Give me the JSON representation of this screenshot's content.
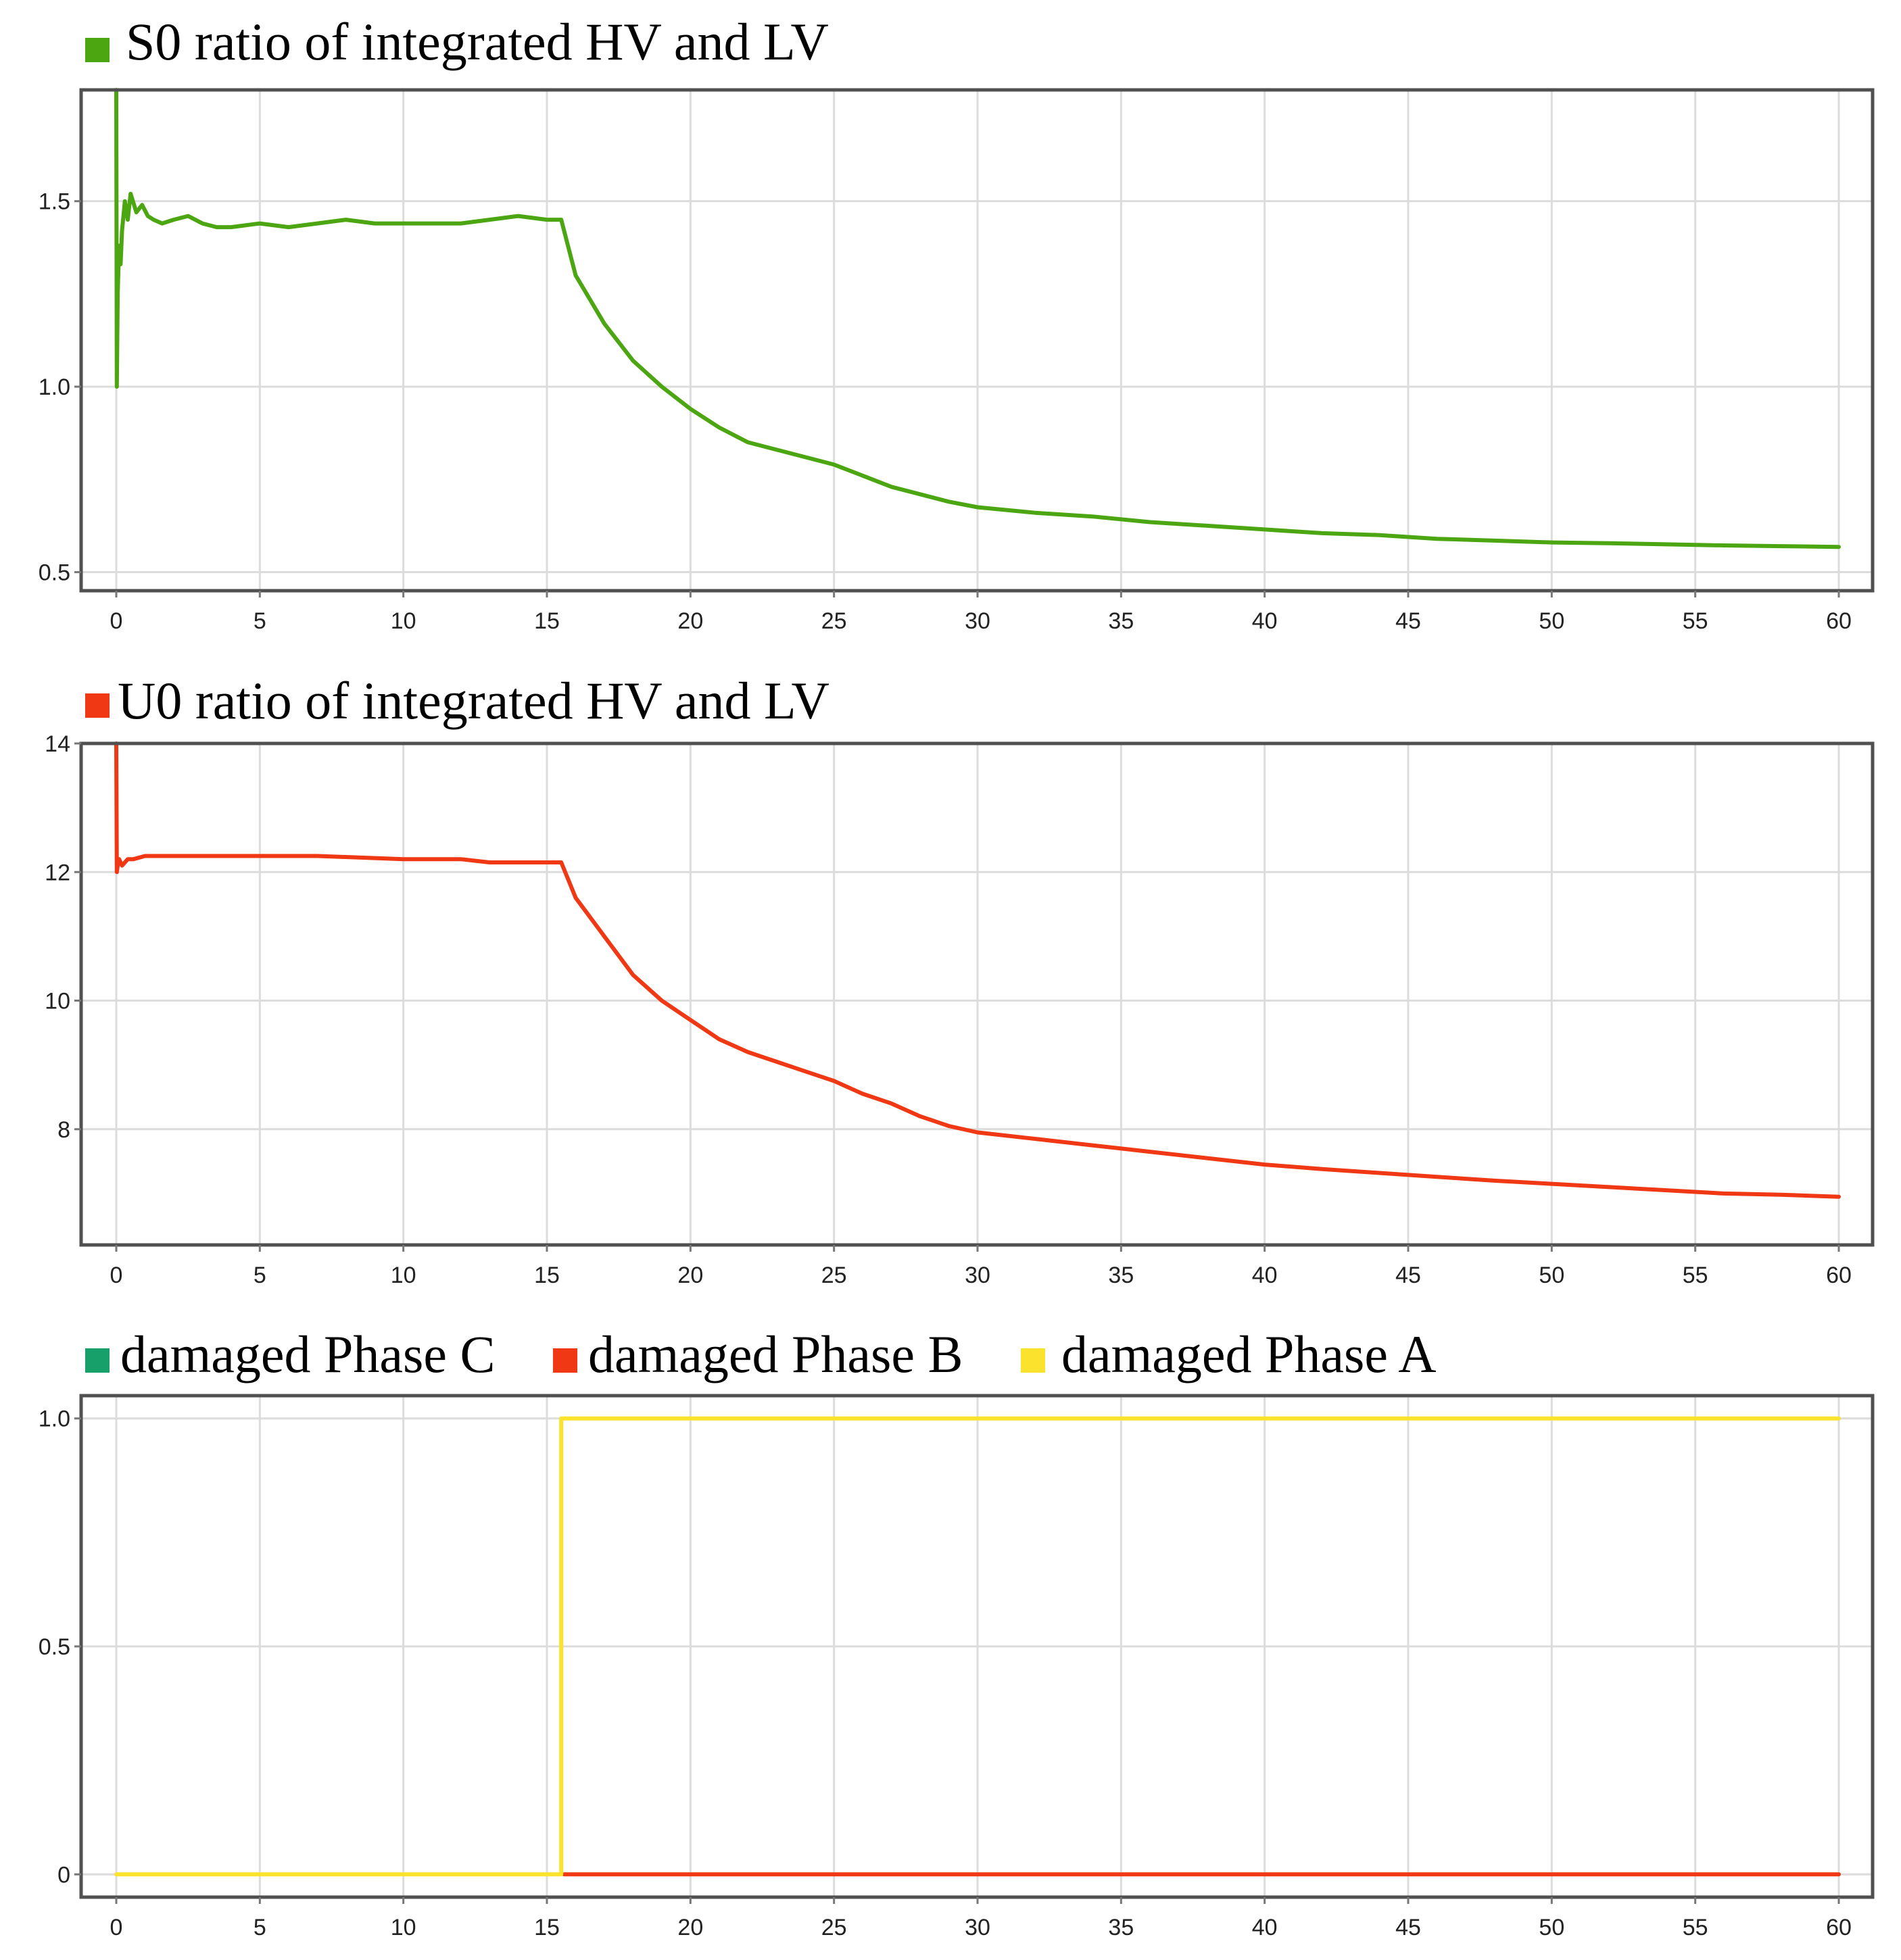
{
  "chart_data": [
    {
      "type": "line",
      "x_range": [
        0,
        60
      ],
      "ylim": [
        0.45,
        1.8
      ],
      "x_ticks": [
        "0",
        "5",
        "10",
        "15",
        "20",
        "25",
        "30",
        "35",
        "40",
        "45",
        "50",
        "55",
        "60"
      ],
      "y_ticks": [
        {
          "value": 0.5,
          "label": "0.5"
        },
        {
          "value": 1.0,
          "label": "1.0"
        },
        {
          "value": 1.5,
          "label": "1.5"
        }
      ],
      "grid": true,
      "legend_placement": "top-left",
      "series": [
        {
          "name": "S0 ratio of integrated HV and LV",
          "color": "#4ca612",
          "x": [
            0,
            0.02,
            0.05,
            0.1,
            0.15,
            0.2,
            0.3,
            0.4,
            0.5,
            0.7,
            0.9,
            1.1,
            1.3,
            1.6,
            2.0,
            2.5,
            3.0,
            3.5,
            4.0,
            5.0,
            6.0,
            7.0,
            8.0,
            9.0,
            10.0,
            11.0,
            12.0,
            13.0,
            14.0,
            15.0,
            15.5,
            16.0,
            17.0,
            18.0,
            19.0,
            20.0,
            21.0,
            22.0,
            23.0,
            24.0,
            25.0,
            26.0,
            27.0,
            28.0,
            29.0,
            30.0,
            32.0,
            34.0,
            36.0,
            38.0,
            40.0,
            42.0,
            44.0,
            46.0,
            48.0,
            50.0,
            52.0,
            54.0,
            56.0,
            58.0,
            60.0
          ],
          "y": [
            1.8,
            1.0,
            1.25,
            1.38,
            1.33,
            1.42,
            1.5,
            1.45,
            1.52,
            1.47,
            1.49,
            1.46,
            1.45,
            1.44,
            1.45,
            1.46,
            1.44,
            1.43,
            1.43,
            1.44,
            1.43,
            1.44,
            1.45,
            1.44,
            1.44,
            1.44,
            1.44,
            1.45,
            1.46,
            1.45,
            1.45,
            1.3,
            1.17,
            1.07,
            1.0,
            0.94,
            0.89,
            0.85,
            0.83,
            0.81,
            0.79,
            0.76,
            0.73,
            0.71,
            0.69,
            0.675,
            0.66,
            0.65,
            0.635,
            0.625,
            0.615,
            0.605,
            0.6,
            0.59,
            0.585,
            0.58,
            0.578,
            0.575,
            0.572,
            0.57,
            0.568
          ]
        }
      ]
    },
    {
      "type": "line",
      "x_range": [
        0,
        60
      ],
      "ylim": [
        6.2,
        14
      ],
      "x_ticks": [
        "0",
        "5",
        "10",
        "15",
        "20",
        "25",
        "30",
        "35",
        "40",
        "45",
        "50",
        "55",
        "60"
      ],
      "y_ticks": [
        {
          "value": 8,
          "label": "8"
        },
        {
          "value": 10,
          "label": "10"
        },
        {
          "value": 12,
          "label": "12"
        },
        {
          "value": 14,
          "label": "14"
        }
      ],
      "grid": true,
      "legend_placement": "top-left",
      "series": [
        {
          "name": "U0 ratio of integrated HV and LV",
          "color": "#f03814",
          "x": [
            0,
            0.02,
            0.05,
            0.1,
            0.2,
            0.4,
            0.6,
            1.0,
            2.0,
            3.0,
            5.0,
            7.0,
            10.0,
            12.0,
            13.0,
            15.0,
            15.5,
            16.0,
            17.0,
            18.0,
            19.0,
            20.0,
            21.0,
            22.0,
            23.0,
            24.0,
            25.0,
            26.0,
            27.0,
            28.0,
            29.0,
            30.0,
            32.0,
            34.0,
            36.0,
            38.0,
            40.0,
            42.0,
            44.0,
            46.0,
            48.0,
            50.0,
            52.0,
            54.0,
            56.0,
            58.0,
            60.0
          ],
          "y": [
            14.0,
            12.0,
            12.1,
            12.2,
            12.1,
            12.2,
            12.2,
            12.25,
            12.25,
            12.25,
            12.25,
            12.25,
            12.2,
            12.2,
            12.15,
            12.15,
            12.15,
            11.6,
            11.0,
            10.4,
            10.0,
            9.7,
            9.4,
            9.2,
            9.05,
            8.9,
            8.75,
            8.55,
            8.4,
            8.2,
            8.05,
            7.95,
            7.85,
            7.75,
            7.65,
            7.55,
            7.45,
            7.38,
            7.32,
            7.26,
            7.2,
            7.15,
            7.1,
            7.05,
            7.0,
            6.98,
            6.95
          ]
        }
      ]
    },
    {
      "type": "line",
      "x_range": [
        0,
        60
      ],
      "ylim": [
        -0.05,
        1.05
      ],
      "x_ticks": [
        "0",
        "5",
        "10",
        "15",
        "20",
        "25",
        "30",
        "35",
        "40",
        "45",
        "50",
        "55",
        "60"
      ],
      "y_ticks": [
        {
          "value": 0,
          "label": "0"
        },
        {
          "value": 0.5,
          "label": "0.5"
        },
        {
          "value": 1.0,
          "label": "1.0"
        }
      ],
      "grid": true,
      "legend_placement": "top-left",
      "series": [
        {
          "name": "damaged Phase C",
          "color": "#17a06a",
          "x": [
            0,
            60
          ],
          "y": [
            0,
            0
          ],
          "draw": false
        },
        {
          "name": "damaged Phase B",
          "color": "#f03814",
          "x": [
            15.6,
            60
          ],
          "y": [
            0,
            0
          ]
        },
        {
          "name": "damaged Phase A",
          "color": "#fbe22c",
          "x": [
            0,
            15.5,
            15.5,
            60
          ],
          "y": [
            0,
            0,
            1,
            1
          ]
        }
      ]
    }
  ]
}
